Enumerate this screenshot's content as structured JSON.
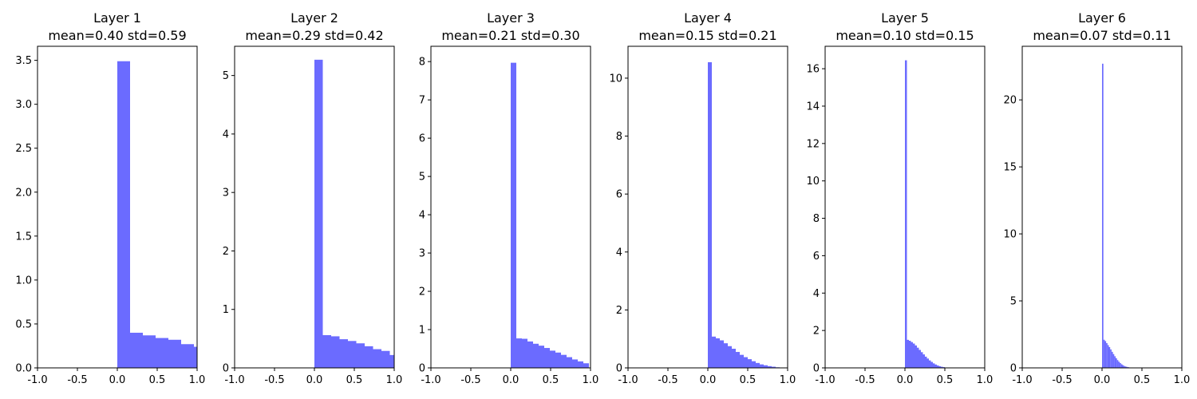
{
  "figure": {
    "bar_color": "#6b6bff",
    "bar_edge": "#5a5aff"
  },
  "chart_data": [
    {
      "type": "bar",
      "title": "Layer 1",
      "subtitle": "mean=0.40 std=0.59",
      "xlim": [
        -1.0,
        1.0
      ],
      "ylim": [
        0,
        3.66
      ],
      "xticks": [
        "-1.0",
        "-0.5",
        "0.0",
        "0.5",
        "1.0"
      ],
      "xtick_values": [
        -1.0,
        -0.5,
        0.0,
        0.5,
        1.0
      ],
      "yticks": [
        "0.0",
        "0.5",
        "1.0",
        "1.5",
        "2.0",
        "2.5",
        "3.0",
        "3.5"
      ],
      "ytick_values": [
        0.0,
        0.5,
        1.0,
        1.5,
        2.0,
        2.5,
        3.0,
        3.5
      ],
      "bin_start": 0.0,
      "bin_width": 0.16,
      "values": [
        3.49,
        0.4,
        0.37,
        0.34,
        0.32,
        0.27,
        0.24
      ]
    },
    {
      "type": "bar",
      "title": "Layer 2",
      "subtitle": "mean=0.29 std=0.42",
      "xlim": [
        -1.0,
        1.0
      ],
      "ylim": [
        0,
        5.5
      ],
      "xticks": [
        "-1.0",
        "-0.5",
        "0.0",
        "0.5",
        "1.0"
      ],
      "xtick_values": [
        -1.0,
        -0.5,
        0.0,
        0.5,
        1.0
      ],
      "yticks": [
        "0",
        "1",
        "2",
        "3",
        "4",
        "5"
      ],
      "ytick_values": [
        0,
        1,
        2,
        3,
        4,
        5
      ],
      "bin_start": 0.0,
      "bin_width": 0.105,
      "values": [
        5.27,
        0.56,
        0.54,
        0.49,
        0.46,
        0.42,
        0.37,
        0.32,
        0.29,
        0.22
      ]
    },
    {
      "type": "bar",
      "title": "Layer 3",
      "subtitle": "mean=0.21 std=0.30",
      "xlim": [
        -1.0,
        1.0
      ],
      "ylim": [
        0,
        8.4
      ],
      "xticks": [
        "-1.0",
        "-0.5",
        "0.0",
        "0.5",
        "1.0"
      ],
      "xtick_values": [
        -1.0,
        -0.5,
        0.0,
        0.5,
        1.0
      ],
      "yticks": [
        "0",
        "1",
        "2",
        "3",
        "4",
        "5",
        "6",
        "7",
        "8"
      ],
      "ytick_values": [
        0,
        1,
        2,
        3,
        4,
        5,
        6,
        7,
        8
      ],
      "bin_start": 0.0,
      "bin_width": 0.07,
      "values": [
        7.97,
        0.77,
        0.76,
        0.69,
        0.63,
        0.58,
        0.52,
        0.45,
        0.4,
        0.34,
        0.28,
        0.22,
        0.17,
        0.12
      ]
    },
    {
      "type": "bar",
      "title": "Layer 4",
      "subtitle": "mean=0.15 std=0.21",
      "xlim": [
        -1.0,
        1.0
      ],
      "ylim": [
        0,
        11.1
      ],
      "xticks": [
        "-1.0",
        "-0.5",
        "0.0",
        "0.5",
        "1.0"
      ],
      "xtick_values": [
        -1.0,
        -0.5,
        0.0,
        0.5,
        1.0
      ],
      "yticks": [
        "0",
        "2",
        "4",
        "6",
        "8",
        "10"
      ],
      "ytick_values": [
        0,
        2,
        4,
        6,
        8,
        10
      ],
      "bin_start": 0.0,
      "bin_width": 0.05,
      "values": [
        10.55,
        1.08,
        1.02,
        0.95,
        0.85,
        0.75,
        0.66,
        0.55,
        0.45,
        0.37,
        0.3,
        0.23,
        0.17,
        0.12,
        0.09,
        0.06,
        0.04,
        0.02,
        0.01,
        0.01
      ]
    },
    {
      "type": "bar",
      "title": "Layer 5",
      "subtitle": "mean=0.10 std=0.15",
      "xlim": [
        -1.0,
        1.0
      ],
      "ylim": [
        0,
        17.2
      ],
      "xticks": [
        "-1.0",
        "-0.5",
        "0.0",
        "0.5",
        "1.0"
      ],
      "xtick_values": [
        -1.0,
        -0.5,
        0.0,
        0.5,
        1.0
      ],
      "yticks": [
        "0",
        "2",
        "4",
        "6",
        "8",
        "10",
        "12",
        "14",
        "16"
      ],
      "ytick_values": [
        0,
        2,
        4,
        6,
        8,
        10,
        12,
        14,
        16
      ],
      "bin_start": 0.0,
      "bin_width": 0.025,
      "values": [
        16.45,
        1.5,
        1.45,
        1.38,
        1.3,
        1.2,
        1.08,
        0.96,
        0.84,
        0.72,
        0.6,
        0.5,
        0.4,
        0.32,
        0.24,
        0.18,
        0.13,
        0.09,
        0.06,
        0.04,
        0.02,
        0.01
      ]
    },
    {
      "type": "bar",
      "title": "Layer 6",
      "subtitle": "mean=0.07 std=0.11",
      "xlim": [
        -1.0,
        1.0
      ],
      "ylim": [
        0,
        24.0
      ],
      "xticks": [
        "-1.0",
        "-0.5",
        "0.0",
        "0.5",
        "1.0"
      ],
      "xtick_values": [
        -1.0,
        -0.5,
        0.0,
        0.5,
        1.0
      ],
      "yticks": [
        "0",
        "5",
        "10",
        "15",
        "20"
      ],
      "ytick_values": [
        0,
        5,
        10,
        15,
        20
      ],
      "bin_start": 0.0,
      "bin_width": 0.017,
      "values": [
        22.7,
        2.1,
        2.0,
        1.85,
        1.7,
        1.55,
        1.38,
        1.2,
        1.03,
        0.87,
        0.72,
        0.58,
        0.46,
        0.36,
        0.27,
        0.2,
        0.14,
        0.1,
        0.07,
        0.05,
        0.03,
        0.02,
        0.01,
        0.01,
        0.01,
        0.005,
        0.005,
        0.005,
        0.005,
        0.005
      ]
    }
  ]
}
